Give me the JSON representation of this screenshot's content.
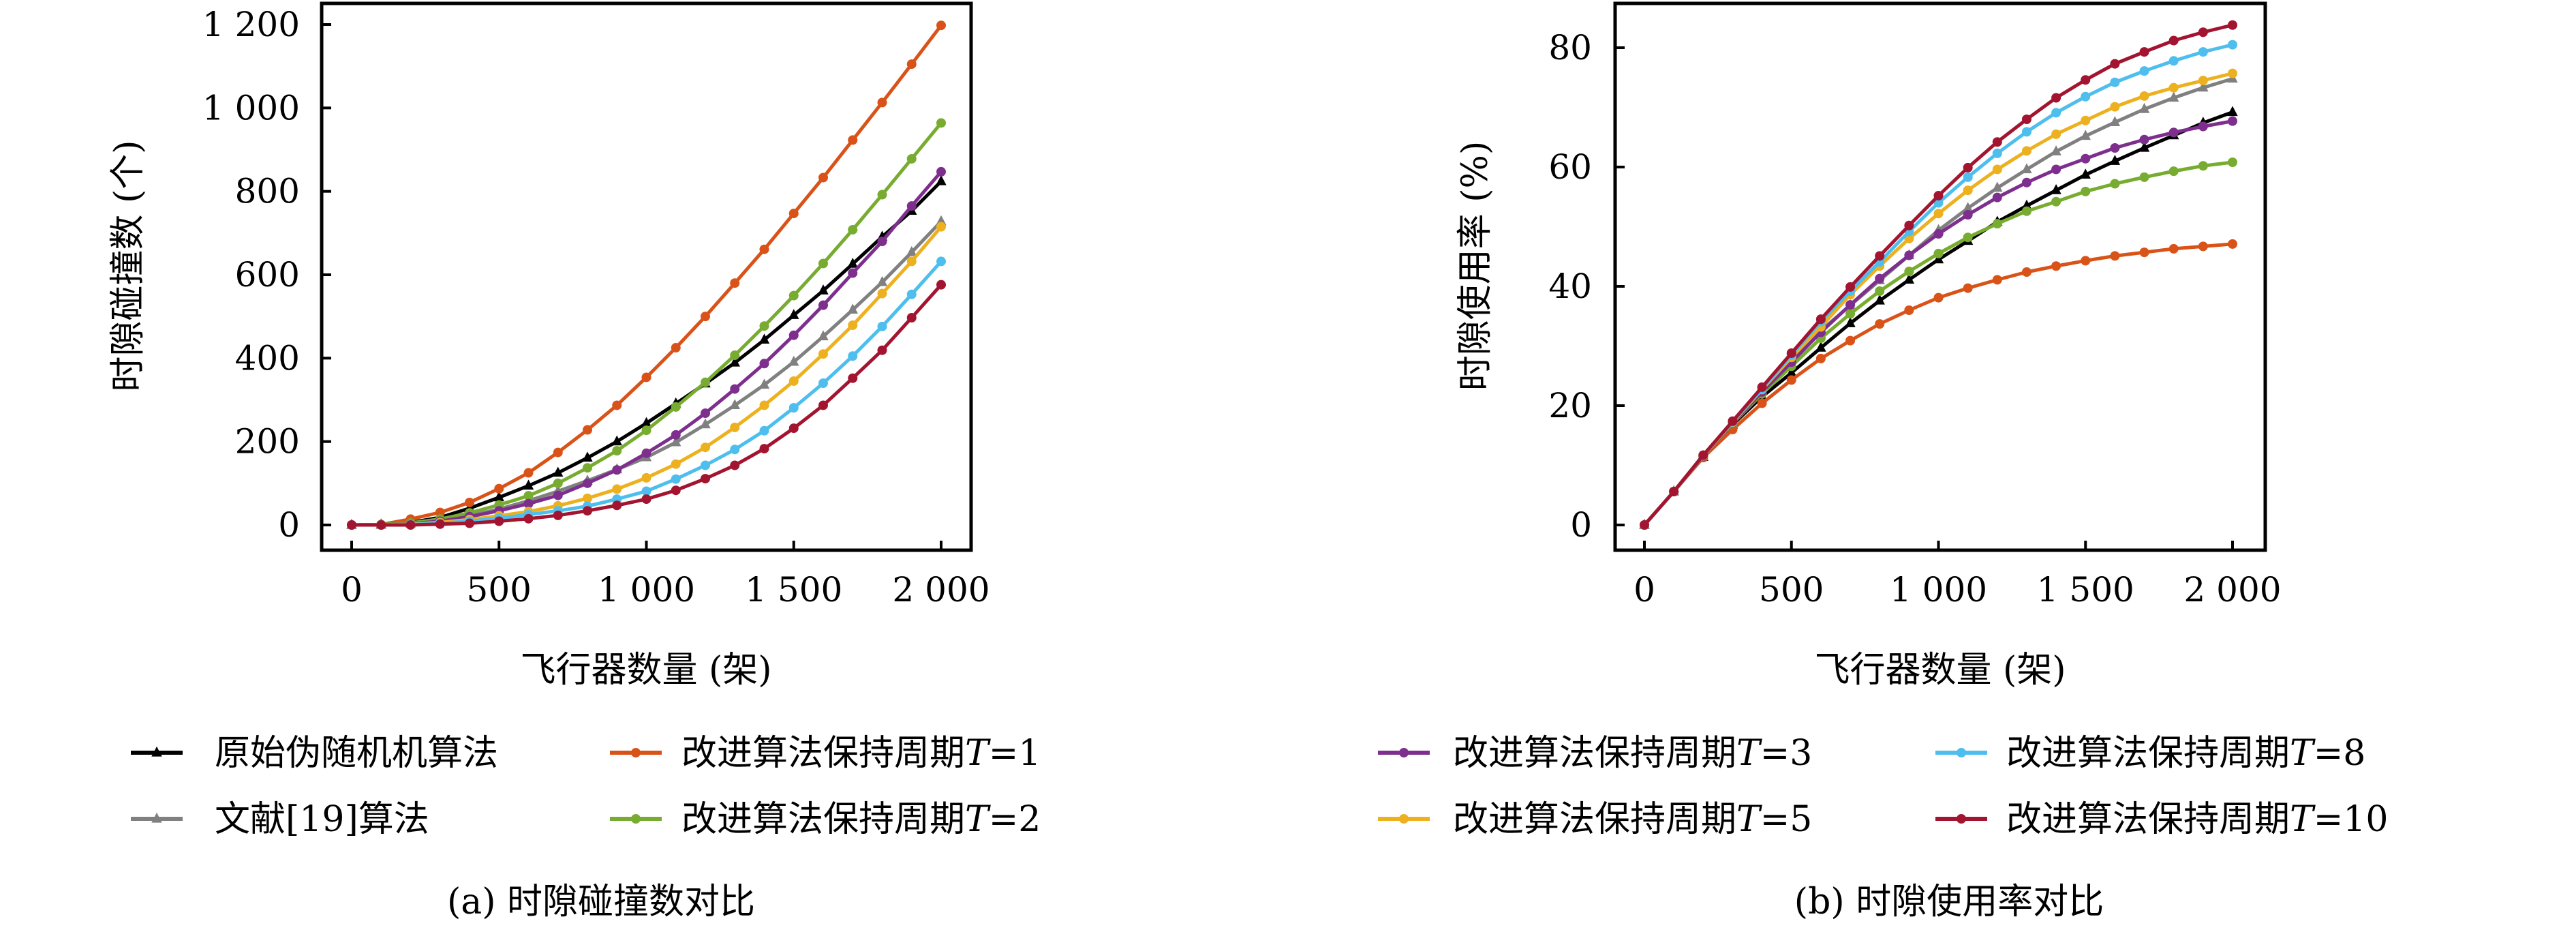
{
  "chart_data": [
    {
      "type": "line",
      "caption": "(a) 时隙碰撞数对比",
      "xlabel": "飞行器数量 (架)",
      "ylabel": "时隙碰撞数 (个)",
      "xlim": [
        0,
        2000
      ],
      "ylim": [
        0,
        1200
      ],
      "xticks": [
        0,
        500,
        1000,
        1500,
        2000
      ],
      "xtick_labels": [
        "0",
        "500",
        "1 000",
        "1 500",
        "2 000"
      ],
      "yticks": [
        0,
        200,
        400,
        600,
        800,
        1000,
        1200
      ],
      "ytick_labels": [
        "0",
        "200",
        "400",
        "600",
        "800",
        "1 000",
        "1 200"
      ],
      "grid": false,
      "legend_placement": "bottom",
      "x": [
        0,
        100,
        200,
        300,
        400,
        500,
        600,
        700,
        800,
        900,
        1000,
        1100,
        1200,
        1300,
        1400,
        1500,
        1600,
        1700,
        1800,
        1900,
        2000
      ],
      "series": [
        {
          "name": "原始伪随机机算法",
          "color": "#000000",
          "marker": "triangle",
          "values": [
            0,
            1,
            6,
            18,
            40,
            66,
            94,
            125,
            161,
            200,
            244,
            291,
            339,
            389,
            444,
            503,
            562,
            626,
            691,
            753,
            824
          ]
        },
        {
          "name": "改进算法保持周期T=1",
          "color": "#D95319",
          "marker": "circle",
          "values": [
            0,
            1,
            14,
            30,
            54,
            87,
            125,
            174,
            228,
            287,
            354,
            425,
            500,
            580,
            661,
            747,
            833,
            923,
            1013,
            1105,
            1198
          ]
        },
        {
          "name": "文献[19]算法",
          "color": "#808080",
          "marker": "triangle",
          "values": [
            0,
            0,
            3,
            10,
            22,
            38,
            58,
            81,
            106,
            133,
            162,
            198,
            241,
            287,
            336,
            391,
            452,
            516,
            582,
            654,
            728
          ]
        },
        {
          "name": "改进算法保持周期T=2",
          "color": "#77AC30",
          "marker": "circle",
          "values": [
            0,
            1,
            5,
            14,
            29,
            48,
            70,
            100,
            137,
            178,
            227,
            283,
            342,
            407,
            477,
            550,
            627,
            708,
            792,
            878,
            964
          ]
        },
        {
          "name": "改进算法保持周期T=3",
          "color": "#7E2F8E",
          "marker": "circle",
          "values": [
            0,
            0,
            3,
            9,
            20,
            34,
            51,
            71,
            100,
            132,
            172,
            216,
            268,
            326,
            387,
            455,
            527,
            604,
            680,
            765,
            847
          ]
        },
        {
          "name": "改进算法保持周期T=5",
          "color": "#EDB120",
          "marker": "circle",
          "values": [
            0,
            0,
            2,
            6,
            13,
            22,
            32,
            46,
            64,
            86,
            113,
            146,
            186,
            234,
            287,
            345,
            410,
            479,
            555,
            632,
            715
          ]
        },
        {
          "name": "改进算法保持周期T=8",
          "color": "#4DBEEE",
          "marker": "circle",
          "values": [
            0,
            0,
            1,
            4,
            9,
            16,
            25,
            34,
            45,
            62,
            81,
            110,
            143,
            181,
            226,
            281,
            340,
            405,
            476,
            553,
            632
          ]
        },
        {
          "name": "改进算法保持周期T=10",
          "color": "#A2142F",
          "marker": "circle",
          "values": [
            0,
            0,
            0,
            2,
            4,
            9,
            15,
            23,
            34,
            47,
            62,
            83,
            111,
            143,
            183,
            232,
            287,
            352,
            419,
            497,
            576
          ]
        }
      ],
      "legend_order": [
        0,
        1,
        2,
        3
      ]
    },
    {
      "type": "line",
      "caption": "(b) 时隙使用率对比",
      "xlabel": "飞行器数量 (架)",
      "ylabel": "时隙使用率 (%)",
      "xlim": [
        0,
        2000
      ],
      "ylim": [
        0,
        80
      ],
      "xticks": [
        0,
        500,
        1000,
        1500,
        2000
      ],
      "xtick_labels": [
        "0",
        "500",
        "1 000",
        "1 500",
        "2 000"
      ],
      "yticks": [
        0,
        20,
        40,
        60,
        80
      ],
      "ytick_labels": [
        "0",
        "20",
        "40",
        "60",
        "80"
      ],
      "grid": false,
      "legend_placement": "bottom",
      "x": [
        0,
        100,
        200,
        300,
        400,
        500,
        600,
        700,
        800,
        900,
        1000,
        1100,
        1200,
        1300,
        1400,
        1500,
        1600,
        1700,
        1800,
        1900,
        2000
      ],
      "series": [
        {
          "name": "原始伪随机机算法",
          "color": "#000000",
          "marker": "triangle",
          "values": [
            0,
            5.6,
            11.4,
            16.8,
            21.5,
            25.5,
            29.7,
            33.8,
            37.6,
            41.1,
            44.5,
            47.6,
            50.8,
            53.5,
            56.1,
            58.7,
            61.0,
            63.2,
            65.3,
            67.4,
            69.2
          ]
        },
        {
          "name": "改进算法保持周期T=1",
          "color": "#D95319",
          "marker": "circle",
          "values": [
            0,
            5.6,
            11.3,
            16.0,
            20.4,
            24.3,
            27.9,
            30.9,
            33.7,
            36.0,
            38.1,
            39.7,
            41.1,
            42.4,
            43.4,
            44.3,
            45.1,
            45.7,
            46.3,
            46.7,
            47.1
          ]
        },
        {
          "name": "文献[19]算法",
          "color": "#808080",
          "marker": "triangle",
          "values": [
            0,
            5.6,
            11.5,
            17.0,
            22.4,
            27.8,
            32.6,
            36.8,
            41.0,
            45.2,
            49.4,
            53.1,
            56.5,
            59.6,
            62.6,
            65.2,
            67.5,
            69.7,
            71.6,
            73.3,
            74.8
          ]
        },
        {
          "name": "改进算法保持周期T=2",
          "color": "#77AC30",
          "marker": "circle",
          "values": [
            0,
            5.6,
            11.5,
            17.0,
            22.0,
            26.6,
            31.3,
            35.4,
            39.2,
            42.5,
            45.5,
            48.2,
            50.5,
            52.6,
            54.2,
            55.9,
            57.2,
            58.3,
            59.3,
            60.2,
            60.8
          ]
        },
        {
          "name": "改进算法保持周期T=3",
          "color": "#7E2F8E",
          "marker": "circle",
          "values": [
            0,
            5.6,
            11.5,
            17.1,
            22.3,
            27.3,
            32.3,
            36.9,
            41.3,
            45.2,
            48.8,
            52.0,
            54.9,
            57.4,
            59.6,
            61.4,
            63.2,
            64.6,
            65.8,
            66.8,
            67.7
          ]
        },
        {
          "name": "改进算法保持周期T=5",
          "color": "#EDB120",
          "marker": "circle",
          "values": [
            0,
            5.6,
            11.6,
            17.2,
            22.7,
            28.1,
            33.2,
            38.6,
            43.4,
            48.0,
            52.2,
            56.1,
            59.6,
            62.7,
            65.5,
            67.8,
            70.1,
            71.9,
            73.3,
            74.5,
            75.7
          ]
        },
        {
          "name": "改进算法保持周期T=8",
          "color": "#4DBEEE",
          "marker": "circle",
          "values": [
            0,
            5.6,
            11.7,
            17.3,
            22.8,
            28.5,
            34.1,
            39.2,
            44.1,
            49.2,
            54.0,
            58.3,
            62.3,
            65.9,
            69.1,
            71.8,
            74.2,
            76.1,
            77.8,
            79.3,
            80.5
          ]
        },
        {
          "name": "改进算法保持周期T=10",
          "color": "#A2142F",
          "marker": "circle",
          "values": [
            0,
            5.6,
            11.7,
            17.4,
            23.1,
            28.8,
            34.5,
            39.9,
            45.1,
            50.2,
            55.2,
            59.9,
            64.2,
            68.0,
            71.6,
            74.6,
            77.3,
            79.3,
            81.2,
            82.6,
            83.8
          ]
        }
      ],
      "legend_order": [
        4,
        6,
        5,
        7
      ]
    }
  ]
}
